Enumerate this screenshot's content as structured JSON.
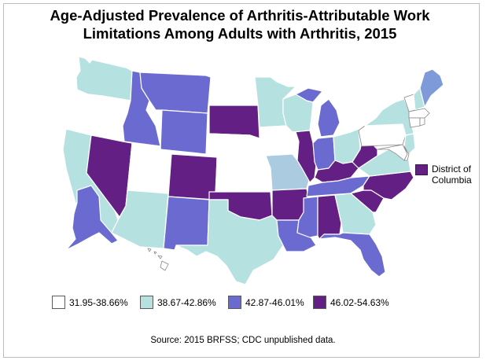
{
  "title": {
    "line1": "Age-Adjusted Prevalence of Arthritis-Attributable Work",
    "line2": "Limitations Among Adults with Arthritis, 2015"
  },
  "colors": {
    "class1": "#ffffff",
    "class2": "#b5e1e1",
    "class3": "#6a6ad0",
    "class4": "#631f83",
    "missouri": "#aacbe0",
    "maine": "#7f9ad8"
  },
  "legend": [
    {
      "label": "31.95-38.66%",
      "class": "class1"
    },
    {
      "label": "38.67-42.86%",
      "class": "class2"
    },
    {
      "label": "42.87-46.01%",
      "class": "class3"
    },
    {
      "label": "46.02-54.63%",
      "class": "class4"
    }
  ],
  "dc": {
    "label": "District of Columbia",
    "class": "class4"
  },
  "source": "Source:  2015 BRFSS; CDC unpublished data.",
  "states": {
    "WA": "class2",
    "OR": "class1",
    "CA": "class2",
    "ID": "class3",
    "NV": "class4",
    "MT": "class3",
    "WY": "class3",
    "UT": "class1",
    "AZ": "class2",
    "CO": "class4",
    "NM": "class3",
    "ND": "class1",
    "SD": "class4",
    "NE": "class1",
    "KS": "class1",
    "OK": "class4",
    "TX": "class2",
    "MN": "class2",
    "IA": "class1",
    "MO": "missouri",
    "AR": "class4",
    "LA": "class3",
    "WI": "class2",
    "IL": "class4",
    "MI": "class3",
    "IN": "class3",
    "OH": "class2",
    "KY": "class4",
    "TN": "class3",
    "MS": "class3",
    "AL": "class4",
    "GA": "class2",
    "FL": "class3",
    "SC": "class4",
    "NC": "class4",
    "VA": "class2",
    "WV": "class4",
    "PA": "class1",
    "NY": "class2",
    "VT": "class1",
    "NH": "class2",
    "ME": "maine",
    "MA": "class1",
    "CT": "class1",
    "RI": "class1",
    "NJ": "class2",
    "DE": "class1",
    "MD": "class1",
    "AK": "class3",
    "HI": "class1"
  }
}
